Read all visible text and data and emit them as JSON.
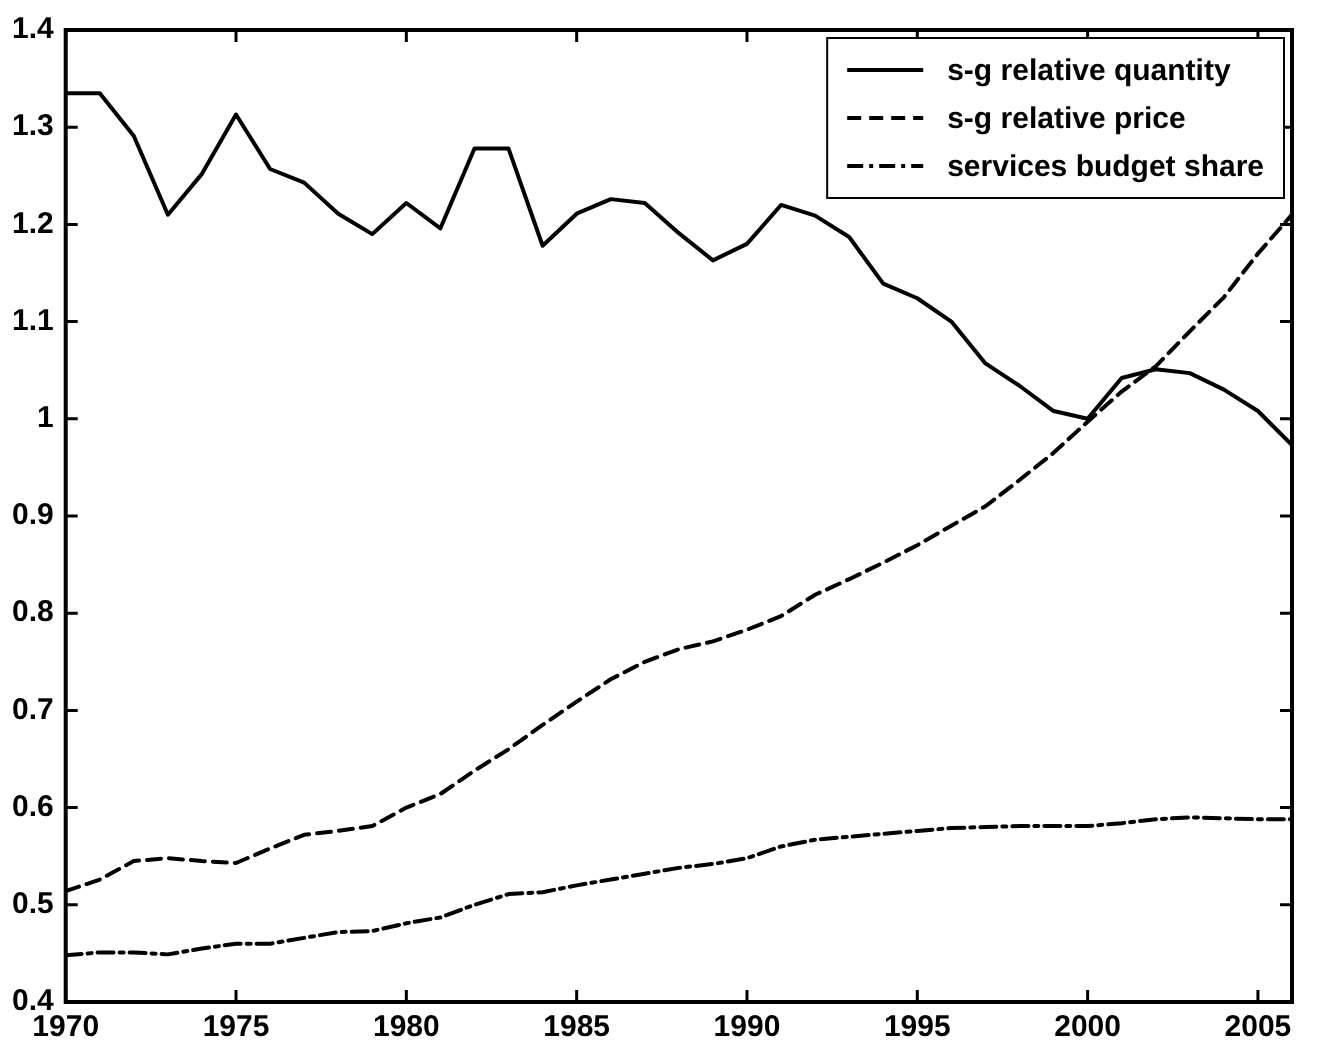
{
  "chart_data": {
    "type": "line",
    "x": [
      1970,
      1971,
      1972,
      1973,
      1974,
      1975,
      1976,
      1977,
      1978,
      1979,
      1980,
      1981,
      1982,
      1983,
      1984,
      1985,
      1986,
      1987,
      1988,
      1989,
      1990,
      1991,
      1992,
      1993,
      1994,
      1995,
      1996,
      1997,
      1998,
      1999,
      2000,
      2001,
      2002,
      2003,
      2004,
      2005,
      2006
    ],
    "xlim": [
      1970,
      2006
    ],
    "xticks": [
      1970,
      1975,
      1980,
      1985,
      1990,
      1995,
      2000,
      2005
    ],
    "ylim": [
      0.4,
      1.4
    ],
    "yticks": [
      0.4,
      0.5,
      0.6,
      0.7,
      0.8,
      0.9,
      1,
      1.1,
      1.2,
      1.3,
      1.4
    ],
    "grid": false,
    "legend": "top right",
    "marker": "none",
    "series": [
      {
        "name": "s-g relative quantity",
        "color": "#000000",
        "line_style": "solid",
        "values": [
          1.335,
          1.335,
          1.291,
          1.21,
          1.252,
          1.313,
          1.257,
          1.243,
          1.211,
          1.19,
          1.222,
          1.196,
          1.278,
          1.278,
          1.178,
          1.211,
          1.226,
          1.222,
          1.191,
          1.163,
          1.18,
          1.22,
          1.209,
          1.187,
          1.139,
          1.124,
          1.1,
          1.057,
          1.034,
          1.008,
          1.0,
          1.042,
          1.051,
          1.047,
          1.03,
          1.008,
          0.973
        ]
      },
      {
        "name": "s-g relative price",
        "color": "#000000",
        "line_style": "dashed",
        "values": [
          0.514,
          0.526,
          0.545,
          0.548,
          0.545,
          0.543,
          0.558,
          0.572,
          0.576,
          0.581,
          0.6,
          0.614,
          0.638,
          0.66,
          0.685,
          0.709,
          0.732,
          0.75,
          0.763,
          0.771,
          0.783,
          0.797,
          0.819,
          0.835,
          0.852,
          0.87,
          0.89,
          0.91,
          0.937,
          0.965,
          0.997,
          1.028,
          1.054,
          1.09,
          1.125,
          1.17,
          1.21
        ]
      },
      {
        "name": "services budget share",
        "color": "#000000",
        "line_style": "dashdot",
        "values": [
          0.448,
          0.451,
          0.451,
          0.449,
          0.455,
          0.46,
          0.46,
          0.466,
          0.472,
          0.473,
          0.481,
          0.487,
          0.5,
          0.511,
          0.513,
          0.52,
          0.526,
          0.532,
          0.538,
          0.542,
          0.548,
          0.56,
          0.567,
          0.57,
          0.573,
          0.576,
          0.579,
          0.58,
          0.581,
          0.581,
          0.581,
          0.584,
          0.588,
          0.59,
          0.589,
          0.588,
          0.588
        ]
      }
    ]
  }
}
